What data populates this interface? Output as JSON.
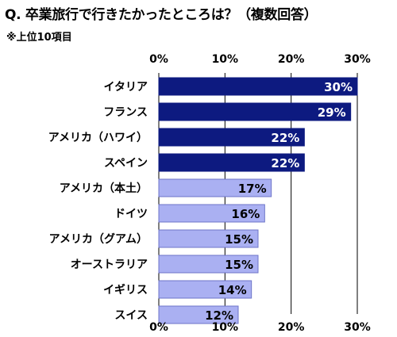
{
  "header": {
    "title": "Q. 卒業旅行で行きたかったところは？（複数回答）",
    "subtitle": "※上位10項目"
  },
  "colors": {
    "top_bar": "#0d1a80",
    "other_bar": "#aab0f2",
    "grid": "#000000",
    "top_label": "#ffffff",
    "other_label": "#000000"
  },
  "chart_data": {
    "type": "bar",
    "orientation": "horizontal",
    "categories": [
      "イタリア",
      "フランス",
      "アメリカ（ハワイ）",
      "スペイン",
      "アメリカ（本土）",
      "ドイツ",
      "アメリカ（グアム）",
      "オーストラリア",
      "イギリス",
      "スイス"
    ],
    "values": [
      30,
      29,
      22,
      22,
      17,
      16,
      15,
      15,
      14,
      12
    ],
    "data_labels": [
      "30%",
      "29%",
      "22%",
      "22%",
      "17%",
      "16%",
      "15%",
      "15%",
      "14%",
      "12%"
    ],
    "highlight_count": 4,
    "xlim": [
      0,
      30
    ],
    "ticks": [
      0,
      10,
      20,
      30
    ],
    "tick_labels": [
      "0%",
      "10%",
      "20%",
      "30%"
    ],
    "tick_labels_position": "top-and-bottom",
    "grid": true,
    "title": "Q. 卒業旅行で行きたかったところは？（複数回答）",
    "xlabel": "",
    "ylabel": ""
  }
}
